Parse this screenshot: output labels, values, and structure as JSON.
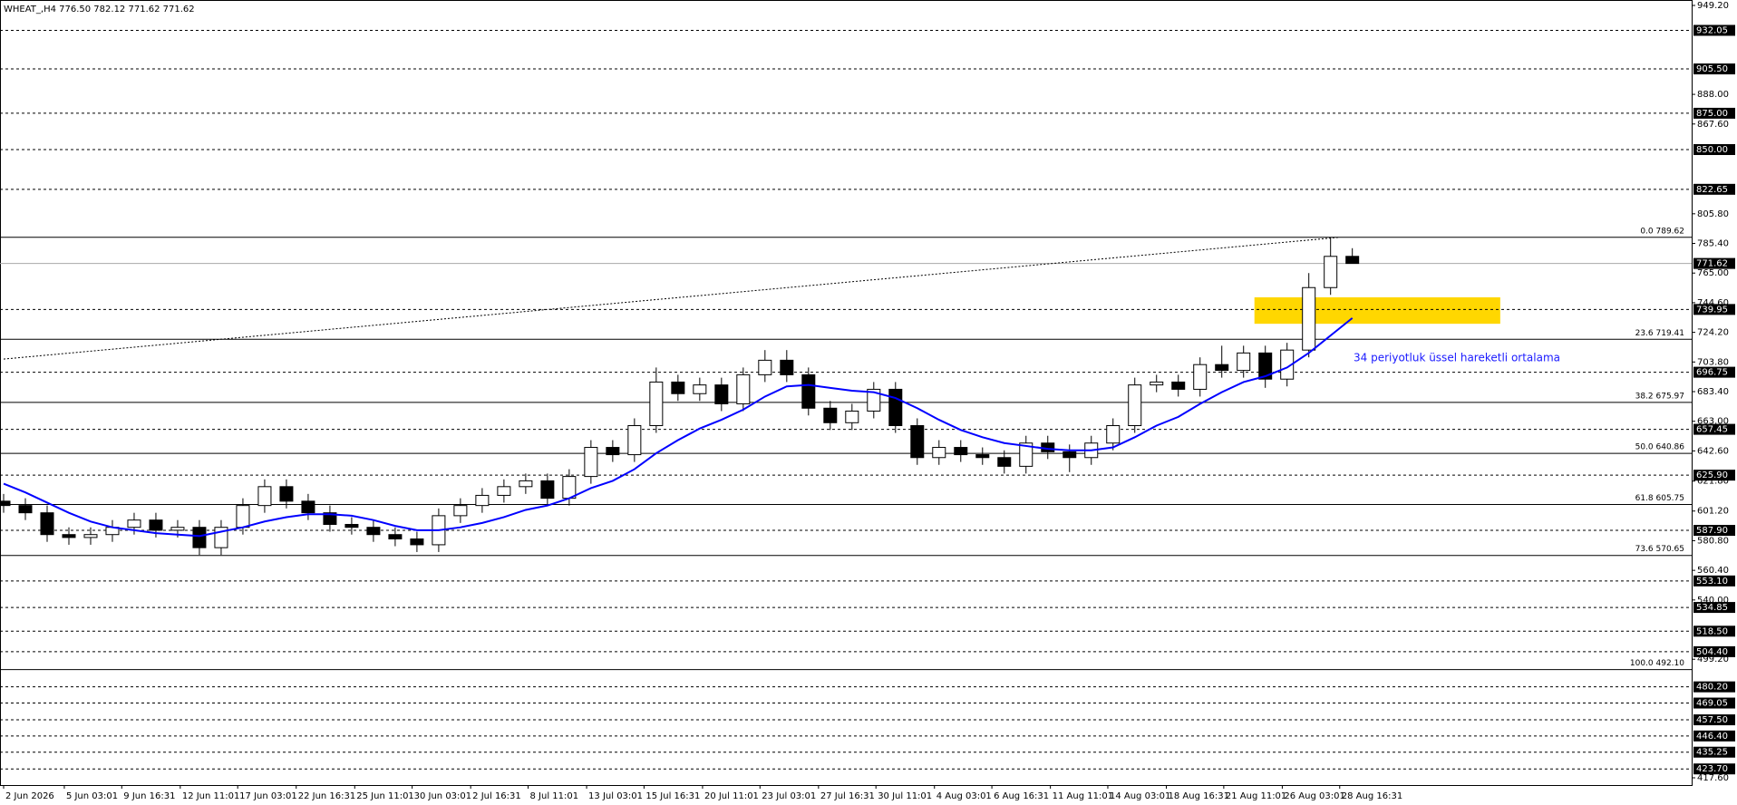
{
  "chart_data": {
    "type": "candlestick",
    "title": "WHEAT_,H4  776.50 782.12 771.62 771.62",
    "ylim": [
      417.6,
      949.2
    ],
    "xlim": [
      0,
      77.6
    ],
    "yticks": [
      {
        "value": 949.2,
        "label": "949.20"
      },
      {
        "value": 888,
        "label": "888.00"
      },
      {
        "value": 867.6,
        "label": "867.60"
      },
      {
        "value": 805.8,
        "label": "805.80"
      },
      {
        "value": 785.4,
        "label": "785.40"
      },
      {
        "value": 765,
        "label": "765.00"
      },
      {
        "value": 744.6,
        "label": "744.60"
      },
      {
        "value": 724.2,
        "label": "724.20"
      },
      {
        "value": 703.8,
        "label": "703.80"
      },
      {
        "value": 683.4,
        "label": "683.40"
      },
      {
        "value": 663,
        "label": "663.00"
      },
      {
        "value": 642.6,
        "label": "642.60"
      },
      {
        "value": 621.8,
        "label": "621.80"
      },
      {
        "value": 601.2,
        "label": "601.20"
      },
      {
        "value": 580.8,
        "label": "580.80"
      },
      {
        "value": 560.4,
        "label": "560.40"
      },
      {
        "value": 540,
        "label": "540.00"
      },
      {
        "value": 499.2,
        "label": "499.20"
      },
      {
        "value": 417.6,
        "label": "417.60"
      }
    ],
    "xticks": [
      {
        "value": 0,
        "label": "2 Jun 2026"
      },
      {
        "value": 2.79,
        "label": "5 Jun 03:01"
      },
      {
        "value": 5.43,
        "label": "9 Jun 16:31"
      },
      {
        "value": 8.12,
        "label": "12 Jun 11:01"
      },
      {
        "value": 10.76,
        "label": "17 Jun 03:01"
      },
      {
        "value": 13.45,
        "label": "22 Jun 16:31"
      },
      {
        "value": 16.14,
        "label": "25 Jun 11:01"
      },
      {
        "value": 18.78,
        "label": "30 Jun 03:01"
      },
      {
        "value": 21.47,
        "label": "2 Jul 16:31"
      },
      {
        "value": 24.11,
        "label": "8 Jul 11:01"
      },
      {
        "value": 26.8,
        "label": "13 Jul 03:01"
      },
      {
        "value": 29.44,
        "label": "15 Jul 16:31"
      },
      {
        "value": 32.13,
        "label": "20 Jul 11:01"
      },
      {
        "value": 34.77,
        "label": "23 Jul 03:01"
      },
      {
        "value": 37.46,
        "label": "27 Jul 16:31"
      },
      {
        "value": 40.1,
        "label": "30 Jul 11:01"
      },
      {
        "value": 42.79,
        "label": "4 Aug 03:01"
      },
      {
        "value": 45.43,
        "label": "6 Aug 16:31"
      },
      {
        "value": 48.12,
        "label": "11 Aug 11:01"
      },
      {
        "value": 50.76,
        "label": "14 Aug 03:01"
      },
      {
        "value": 53.45,
        "label": "18 Aug 16:31"
      },
      {
        "value": 56.09,
        "label": "21 Aug 11:01"
      },
      {
        "value": 58.78,
        "label": "26 Aug 03:01"
      },
      {
        "value": 61.42,
        "label": "28 Aug 16:31"
      }
    ],
    "candles": {
      "x": [
        0,
        1,
        2,
        3,
        4,
        5,
        6,
        7,
        8,
        9,
        10,
        11,
        12,
        13,
        14,
        15,
        16,
        17,
        18,
        19,
        20,
        21,
        22,
        23,
        24,
        25,
        26,
        27,
        28,
        29,
        30,
        31,
        32,
        33,
        34,
        35,
        36,
        37,
        38,
        39,
        40,
        41,
        42,
        43,
        44,
        45,
        46,
        47,
        48,
        49,
        50,
        51,
        52,
        53,
        54,
        55,
        56,
        57,
        58,
        59,
        60,
        61,
        62
      ],
      "open": [
        608,
        605,
        600,
        585,
        583,
        585,
        590,
        595,
        588,
        590,
        576,
        590,
        605,
        618,
        608,
        600,
        592,
        590,
        585,
        582,
        578,
        598,
        605,
        612,
        618,
        622,
        610,
        625,
        645,
        640,
        660,
        690,
        682,
        688,
        675,
        695,
        705,
        695,
        672,
        662,
        670,
        685,
        660,
        638,
        645,
        640,
        638,
        632,
        648,
        642,
        638,
        648,
        660,
        688,
        690,
        685,
        702,
        698,
        710,
        692,
        712,
        755,
        776.5
      ],
      "high": [
        613,
        610,
        605,
        590,
        590,
        595,
        600,
        600,
        595,
        595,
        595,
        610,
        623,
        623,
        613,
        605,
        597,
        595,
        590,
        587,
        603,
        610,
        617,
        623,
        627,
        627,
        630,
        650,
        650,
        665,
        700,
        695,
        693,
        693,
        700,
        712,
        712,
        700,
        677,
        675,
        690,
        690,
        665,
        650,
        650,
        645,
        643,
        653,
        653,
        647,
        653,
        665,
        693,
        695,
        695,
        707,
        715,
        715,
        715,
        717,
        765,
        789.62,
        782.12
      ],
      "low": [
        600,
        595,
        580,
        578,
        578,
        580,
        585,
        583,
        583,
        571,
        571,
        585,
        600,
        603,
        595,
        587,
        585,
        580,
        577,
        573,
        573,
        593,
        600,
        607,
        613,
        605,
        605,
        620,
        635,
        635,
        655,
        677,
        677,
        670,
        670,
        690,
        690,
        667,
        657,
        657,
        665,
        655,
        633,
        633,
        635,
        633,
        627,
        627,
        637,
        628,
        633,
        643,
        655,
        683,
        680,
        680,
        693,
        693,
        686,
        687,
        707,
        750,
        771.62
      ],
      "close": [
        605,
        600,
        585,
        583,
        585,
        590,
        595,
        588,
        590,
        576,
        590,
        605,
        618,
        608,
        600,
        592,
        590,
        585,
        582,
        578,
        598,
        605,
        612,
        618,
        622,
        610,
        625,
        645,
        640,
        660,
        690,
        682,
        688,
        675,
        695,
        705,
        695,
        672,
        662,
        670,
        685,
        660,
        638,
        645,
        640,
        638,
        632,
        648,
        642,
        638,
        648,
        660,
        688,
        690,
        685,
        702,
        698,
        710,
        692,
        712,
        755,
        776.5,
        771.62
      ]
    },
    "ema": {
      "color": "#0000ff",
      "values": [
        620,
        614,
        607,
        600,
        594,
        590,
        588,
        586,
        585,
        584,
        587,
        590,
        594,
        597,
        599,
        599,
        598,
        595,
        591,
        588,
        588,
        590,
        593,
        597,
        602,
        605,
        610,
        617,
        622,
        630,
        641,
        650,
        658,
        664,
        671,
        680,
        687,
        688,
        686,
        684,
        683,
        679,
        672,
        664,
        657,
        652,
        648,
        646,
        644,
        643,
        643,
        645,
        652,
        660,
        666,
        675,
        683,
        690,
        694,
        700,
        710,
        722,
        734
      ]
    },
    "annotation": "34 periyotluk üssel hareketli ortalama",
    "annotation_color": "#1a1aff",
    "current_price": 771.62,
    "levels": [
      932.05,
      {
        "value": 905.5,
        "label": "905.50"
      },
      {
        "value": 875,
        "label": "875.00"
      },
      {
        "value": 850,
        "label": "850.00"
      },
      822.65,
      739.95,
      696.75,
      657.45,
      {
        "value": 625.9,
        "label": "625.90"
      },
      {
        "value": 587.9,
        "label": "587.90"
      },
      {
        "value": 553.1,
        "label": "553.10"
      },
      534.85,
      {
        "value": 518.5,
        "label": "518.50"
      },
      {
        "value": 504.4,
        "label": "504.40"
      },
      {
        "value": 480.2,
        "label": "480.20"
      },
      469.05,
      {
        "value": 457.5,
        "label": "457.50"
      },
      {
        "value": 446.4,
        "label": "446.40"
      },
      435.25,
      {
        "value": 423.7,
        "label": "423.70"
      }
    ],
    "fib_levels": [
      {
        "value": 789.62,
        "label": "0.0 789.62"
      },
      {
        "value": 719.41,
        "label": "23.6 719.41"
      },
      {
        "value": 675.97,
        "label": "38.2 675.97"
      },
      {
        "value": 640.86,
        "label": "50.0 640.86"
      },
      {
        "value": 605.75,
        "label": "61.8 605.75"
      },
      {
        "value": 570.65,
        "label": "73.6 570.65"
      },
      {
        "value": 492.1,
        "label": "100.0 492.10"
      }
    ],
    "trendline": {
      "x": [
        0,
        61.4
      ],
      "y": [
        705.8,
        789.62
      ]
    },
    "zone": {
      "x": [
        57.5,
        68.8
      ],
      "y": [
        730.1,
        748.3
      ],
      "color": "#ffd700"
    }
  }
}
